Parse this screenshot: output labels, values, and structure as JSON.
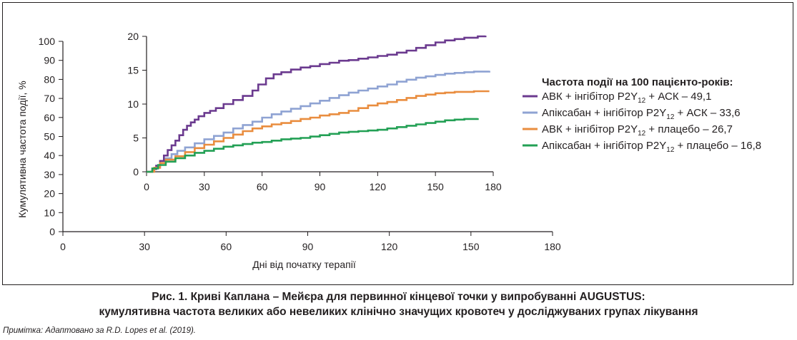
{
  "chart_data": [
    {
      "type": "line",
      "xlabel": "Дні від початку терапії",
      "ylabel": "Кумулятивна частота події, %",
      "xlim": [
        0,
        180
      ],
      "ylim": [
        0,
        100
      ],
      "x_ticks": [
        "0",
        "30",
        "60",
        "90",
        "120",
        "150",
        "180"
      ],
      "y_ticks": [
        "0",
        "10",
        "20",
        "30",
        "40",
        "50",
        "60",
        "70",
        "80",
        "90",
        "100"
      ],
      "series": []
    },
    {
      "type": "line",
      "xlim": [
        0,
        180
      ],
      "ylim": [
        0,
        20
      ],
      "x_ticks": [
        "0",
        "30",
        "60",
        "90",
        "120",
        "150",
        "180"
      ],
      "y_ticks": [
        "0",
        "5",
        "10",
        "15",
        "20"
      ],
      "legend": {
        "title": "Частота події на 100 пацієнто-років:",
        "placement": "right"
      },
      "series": [
        {
          "name_parts": [
            "АВК + інгібітор P2Y",
            "12",
            " + АСК – 49,1"
          ],
          "color": "#6b3a8f",
          "points": [
            [
              0,
              0
            ],
            [
              3,
              0.4
            ],
            [
              5,
              0.9
            ],
            [
              7,
              1.6
            ],
            [
              9,
              2.4
            ],
            [
              11,
              3.2
            ],
            [
              13,
              3.9
            ],
            [
              15,
              4.6
            ],
            [
              17,
              5.4
            ],
            [
              19,
              6.2
            ],
            [
              21,
              6.8
            ],
            [
              23,
              7.3
            ],
            [
              25,
              7.7
            ],
            [
              27,
              8.2
            ],
            [
              30,
              8.7
            ],
            [
              33,
              9.0
            ],
            [
              36,
              9.4
            ],
            [
              40,
              10.0
            ],
            [
              45,
              10.6
            ],
            [
              50,
              11.2
            ],
            [
              55,
              12.0
            ],
            [
              58,
              12.9
            ],
            [
              62,
              13.8
            ],
            [
              66,
              14.4
            ],
            [
              70,
              14.7
            ],
            [
              75,
              15.1
            ],
            [
              80,
              15.4
            ],
            [
              85,
              15.6
            ],
            [
              90,
              15.9
            ],
            [
              95,
              16.1
            ],
            [
              100,
              16.4
            ],
            [
              105,
              16.5
            ],
            [
              110,
              16.7
            ],
            [
              115,
              16.9
            ],
            [
              120,
              17.1
            ],
            [
              125,
              17.3
            ],
            [
              130,
              17.6
            ],
            [
              135,
              17.9
            ],
            [
              140,
              18.3
            ],
            [
              145,
              18.7
            ],
            [
              150,
              19.1
            ],
            [
              155,
              19.4
            ],
            [
              160,
              19.6
            ],
            [
              165,
              19.8
            ],
            [
              172,
              20.0
            ],
            [
              176,
              20.1
            ]
          ]
        },
        {
          "name_parts": [
            "Апіксабан + інгібітор P2Y",
            "12",
            " + АСК – 33,6"
          ],
          "color": "#8fa3d3",
          "points": [
            [
              0,
              0
            ],
            [
              4,
              0.6
            ],
            [
              7,
              1.3
            ],
            [
              10,
              2.0
            ],
            [
              13,
              2.6
            ],
            [
              16,
              3.1
            ],
            [
              20,
              3.6
            ],
            [
              25,
              4.2
            ],
            [
              30,
              4.8
            ],
            [
              35,
              5.3
            ],
            [
              40,
              5.8
            ],
            [
              45,
              6.4
            ],
            [
              50,
              6.9
            ],
            [
              55,
              7.4
            ],
            [
              60,
              8.0
            ],
            [
              65,
              8.5
            ],
            [
              70,
              8.9
            ],
            [
              75,
              9.3
            ],
            [
              80,
              9.7
            ],
            [
              85,
              10.1
            ],
            [
              90,
              10.5
            ],
            [
              95,
              10.9
            ],
            [
              100,
              11.3
            ],
            [
              105,
              11.7
            ],
            [
              110,
              12.0
            ],
            [
              115,
              12.3
            ],
            [
              120,
              12.6
            ],
            [
              125,
              12.9
            ],
            [
              130,
              13.3
            ],
            [
              135,
              13.6
            ],
            [
              140,
              13.9
            ],
            [
              145,
              14.1
            ],
            [
              150,
              14.3
            ],
            [
              155,
              14.5
            ],
            [
              160,
              14.6
            ],
            [
              165,
              14.7
            ],
            [
              170,
              14.8
            ],
            [
              178,
              14.9
            ]
          ]
        },
        {
          "name_parts": [
            "АВК + інгібітор P2Y",
            "12",
            " + плацебо – 26,7"
          ],
          "color": "#e98d3f",
          "points": [
            [
              0,
              0
            ],
            [
              4,
              0.6
            ],
            [
              7,
              1.3
            ],
            [
              10,
              1.8
            ],
            [
              15,
              2.3
            ],
            [
              20,
              2.9
            ],
            [
              25,
              3.5
            ],
            [
              30,
              4.0
            ],
            [
              35,
              4.5
            ],
            [
              40,
              5.0
            ],
            [
              45,
              5.5
            ],
            [
              50,
              6.0
            ],
            [
              55,
              6.4
            ],
            [
              60,
              6.7
            ],
            [
              65,
              7.0
            ],
            [
              70,
              7.2
            ],
            [
              75,
              7.5
            ],
            [
              80,
              7.8
            ],
            [
              85,
              8.0
            ],
            [
              90,
              8.3
            ],
            [
              95,
              8.5
            ],
            [
              100,
              8.7
            ],
            [
              105,
              9.0
            ],
            [
              110,
              9.4
            ],
            [
              115,
              9.8
            ],
            [
              120,
              10.1
            ],
            [
              125,
              10.3
            ],
            [
              130,
              10.6
            ],
            [
              135,
              10.9
            ],
            [
              140,
              11.2
            ],
            [
              145,
              11.4
            ],
            [
              150,
              11.6
            ],
            [
              155,
              11.7
            ],
            [
              160,
              11.8
            ],
            [
              165,
              11.8
            ],
            [
              170,
              11.9
            ],
            [
              178,
              11.9
            ]
          ]
        },
        {
          "name_parts": [
            "Апіксабан + інгібітор P2Y",
            "12",
            " + плацебо – 16,8"
          ],
          "color": "#23a055",
          "points": [
            [
              0,
              0
            ],
            [
              3,
              0.5
            ],
            [
              6,
              1.0
            ],
            [
              10,
              1.5
            ],
            [
              15,
              2.0
            ],
            [
              20,
              2.4
            ],
            [
              25,
              2.8
            ],
            [
              30,
              3.1
            ],
            [
              35,
              3.4
            ],
            [
              40,
              3.7
            ],
            [
              45,
              3.9
            ],
            [
              50,
              4.1
            ],
            [
              55,
              4.3
            ],
            [
              60,
              4.4
            ],
            [
              65,
              4.6
            ],
            [
              70,
              4.8
            ],
            [
              75,
              4.9
            ],
            [
              80,
              5.0
            ],
            [
              85,
              5.2
            ],
            [
              90,
              5.4
            ],
            [
              95,
              5.6
            ],
            [
              100,
              5.8
            ],
            [
              105,
              5.9
            ],
            [
              110,
              6.0
            ],
            [
              115,
              6.1
            ],
            [
              120,
              6.2
            ],
            [
              125,
              6.4
            ],
            [
              130,
              6.6
            ],
            [
              135,
              6.8
            ],
            [
              140,
              7.0
            ],
            [
              145,
              7.2
            ],
            [
              150,
              7.4
            ],
            [
              155,
              7.6
            ],
            [
              160,
              7.7
            ],
            [
              165,
              7.8
            ],
            [
              172,
              7.9
            ]
          ]
        }
      ]
    }
  ],
  "caption": {
    "line1": "Рис. 1. Криві Каплана – Мейєра для первинної кінцевої точки у випробуванні AUGUSTUS:",
    "line2": "кумулятивна частота великих або невеликих клінічно значущих кровотеч у досліджуваних групах лікування"
  },
  "note": {
    "label": "Примітка:",
    "text": " Адаптовано за R.D. Lopes et al. (2019)."
  }
}
